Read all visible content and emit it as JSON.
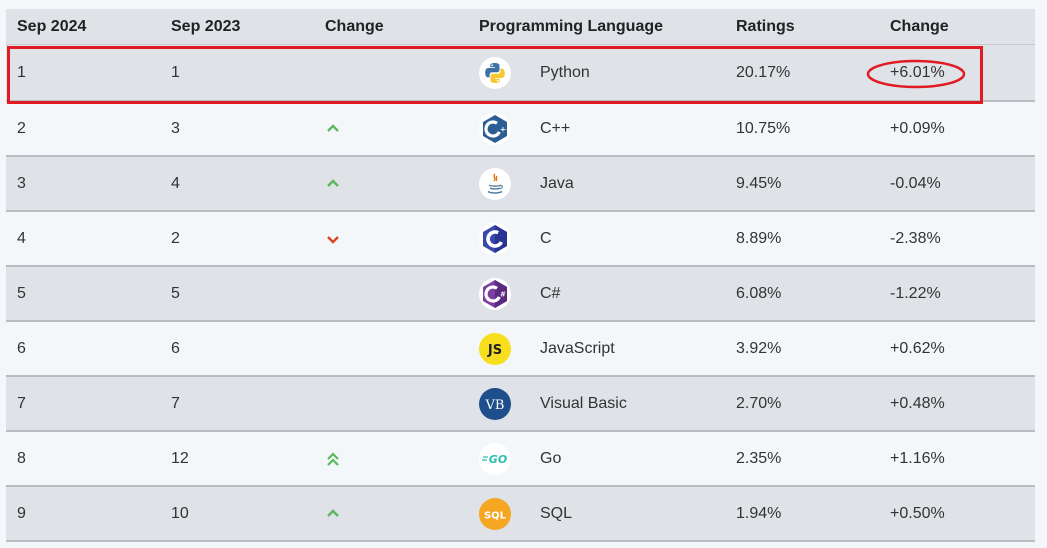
{
  "header": {
    "col1": "Sep 2024",
    "col2": "Sep 2023",
    "col3": "Change",
    "col4": "Programming Language",
    "col5": "Ratings",
    "col6": "Change"
  },
  "rows": [
    {
      "now": "1",
      "prev": "1",
      "trend": "none",
      "logo": "python-logo",
      "language": "Python",
      "rating": "20.17%",
      "change": "+6.01%"
    },
    {
      "now": "2",
      "prev": "3",
      "trend": "up",
      "logo": "cpp-logo",
      "language": "C++",
      "rating": "10.75%",
      "change": "+0.09%"
    },
    {
      "now": "3",
      "prev": "4",
      "trend": "up",
      "logo": "java-logo",
      "language": "Java",
      "rating": "9.45%",
      "change": "-0.04%"
    },
    {
      "now": "4",
      "prev": "2",
      "trend": "down",
      "logo": "c-logo",
      "language": "C",
      "rating": "8.89%",
      "change": "-2.38%"
    },
    {
      "now": "5",
      "prev": "5",
      "trend": "none",
      "logo": "csharp-logo",
      "language": "C#",
      "rating": "6.08%",
      "change": "-1.22%"
    },
    {
      "now": "6",
      "prev": "6",
      "trend": "none",
      "logo": "javascript-logo",
      "language": "JavaScript",
      "rating": "3.92%",
      "change": "+0.62%"
    },
    {
      "now": "7",
      "prev": "7",
      "trend": "none",
      "logo": "visual-basic-logo",
      "language": "Visual Basic",
      "rating": "2.70%",
      "change": "+0.48%"
    },
    {
      "now": "8",
      "prev": "12",
      "trend": "up-double",
      "logo": "go-logo",
      "language": "Go",
      "rating": "2.35%",
      "change": "+1.16%"
    },
    {
      "now": "9",
      "prev": "10",
      "trend": "up",
      "logo": "sql-logo",
      "language": "SQL",
      "rating": "1.94%",
      "change": "+0.50%"
    }
  ],
  "logo_text": {
    "javascript": "JS",
    "visual_basic": "VB",
    "go": "GO",
    "sql": "SQL"
  },
  "colors": {
    "up_arrow": "#5cb85c",
    "down_arrow": "#d9441a",
    "highlight": "#e01b24",
    "header_bg": "#dfe2e6",
    "row_odd": "#dfe2e6",
    "row_even": "#f4f7fa"
  }
}
